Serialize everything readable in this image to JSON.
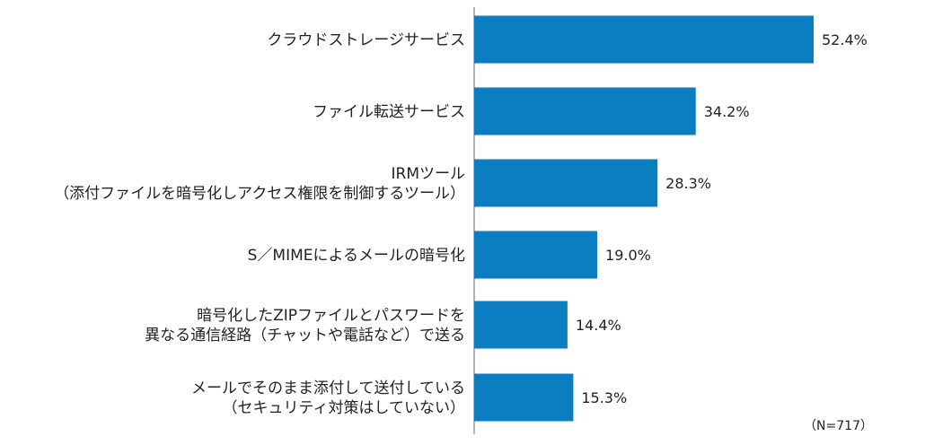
{
  "chart_data": {
    "type": "bar",
    "orientation": "horizontal",
    "categories": [
      [
        "クラウドストレージサービス"
      ],
      [
        "ファイル転送サービス"
      ],
      [
        "IRMツール",
        "（添付ファイルを暗号化しアクセス権限を制御するツール）"
      ],
      [
        "S／MIMEによるメールの暗号化"
      ],
      [
        "暗号化したZIPファイルとパスワードを",
        "異なる通信経路（チャットや電話など）で送る"
      ],
      [
        "メールでそのまま添付して送付している",
        "（セキュリティ対策はしていない）"
      ]
    ],
    "values": [
      52.4,
      34.2,
      28.3,
      19.0,
      14.4,
      15.3
    ],
    "value_labels": [
      "52.4%",
      "34.2%",
      "28.3%",
      "19.0%",
      "14.4%",
      "15.3%"
    ],
    "unit": "%",
    "xlim": [
      0,
      60
    ],
    "grid": false,
    "bar_color": "#0b7dc1",
    "note": "（N=717）"
  }
}
